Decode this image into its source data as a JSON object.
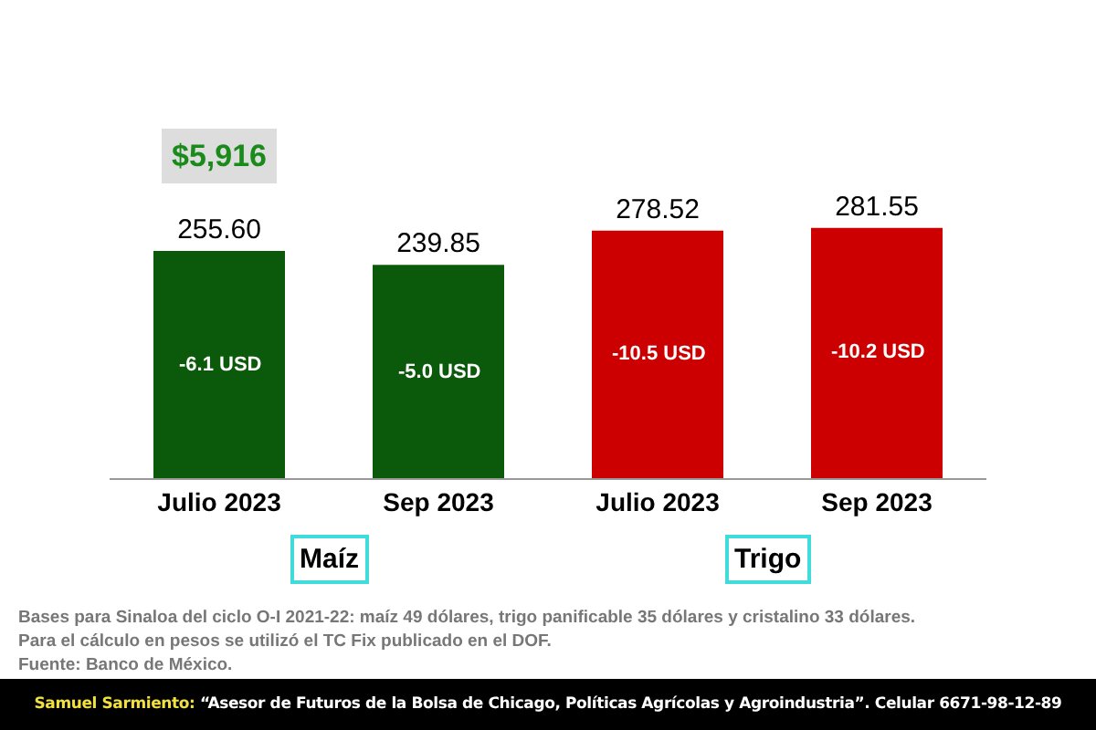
{
  "chart_data": {
    "type": "bar",
    "categories": [
      "Julio 2023",
      "Sep 2023",
      "Julio 2023",
      "Sep 2023"
    ],
    "values": [
      255.6,
      239.85,
      278.52,
      281.55
    ],
    "value_labels": [
      "255.60",
      "239.85",
      "278.52",
      "281.55"
    ],
    "colors": [
      "#0b5a0b",
      "#0b5a0b",
      "#cc0000",
      "#cc0000"
    ],
    "grid": false,
    "legend": false,
    "annotations": [
      "$5,916",
      "-6.1 USD",
      "-5.0 USD",
      "-10.5 USD",
      "-10.2 USD",
      "Maíz",
      "Trigo",
      "Bases para Sinaloa del ciclo O-I 2021-22: maíz 49 dólares, trigo panificable 35 dólares y cristalino 33 dólares.",
      "Para el cálculo en pesos se utilizó el TC Fix publicado en el DOF.",
      "Fuente: Banco de México.",
      "Samuel Sarmiento:",
      "“Asesor de Futuros de la Bolsa de Chicago, Políticas Agrícolas y Agroindustria”. Celular 6671-98-12-89"
    ]
  }
}
